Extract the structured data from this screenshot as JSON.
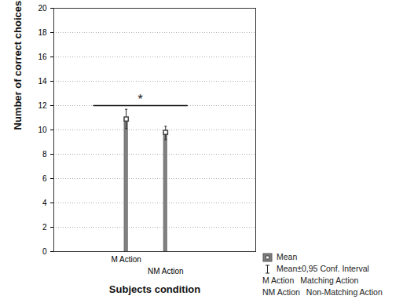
{
  "chart_data": {
    "type": "bar",
    "x_label": "Subjects condition",
    "y_label": "Number of correct choices",
    "categories": [
      "M Action",
      "NM Action"
    ],
    "values": [
      10.9,
      9.8
    ],
    "error_low": [
      10.1,
      9.2
    ],
    "error_high": [
      11.7,
      10.3
    ],
    "color": "#808080",
    "ylim": [
      0,
      20
    ],
    "yticks": [
      0,
      2,
      4,
      6,
      8,
      10,
      12,
      14,
      16,
      18,
      20
    ],
    "grid": true,
    "legend": "right",
    "legend_labels": [
      "Mean",
      "Mean±0,95 Conf. Interval"
    ],
    "abbreviations": [
      {
        "abbr": "M Action",
        "text": "Matching Action"
      },
      {
        "abbr": "NM Action",
        "text": "Non-Matching Action"
      }
    ],
    "annotations": [
      {
        "text": "*",
        "y": 12
      }
    ]
  }
}
